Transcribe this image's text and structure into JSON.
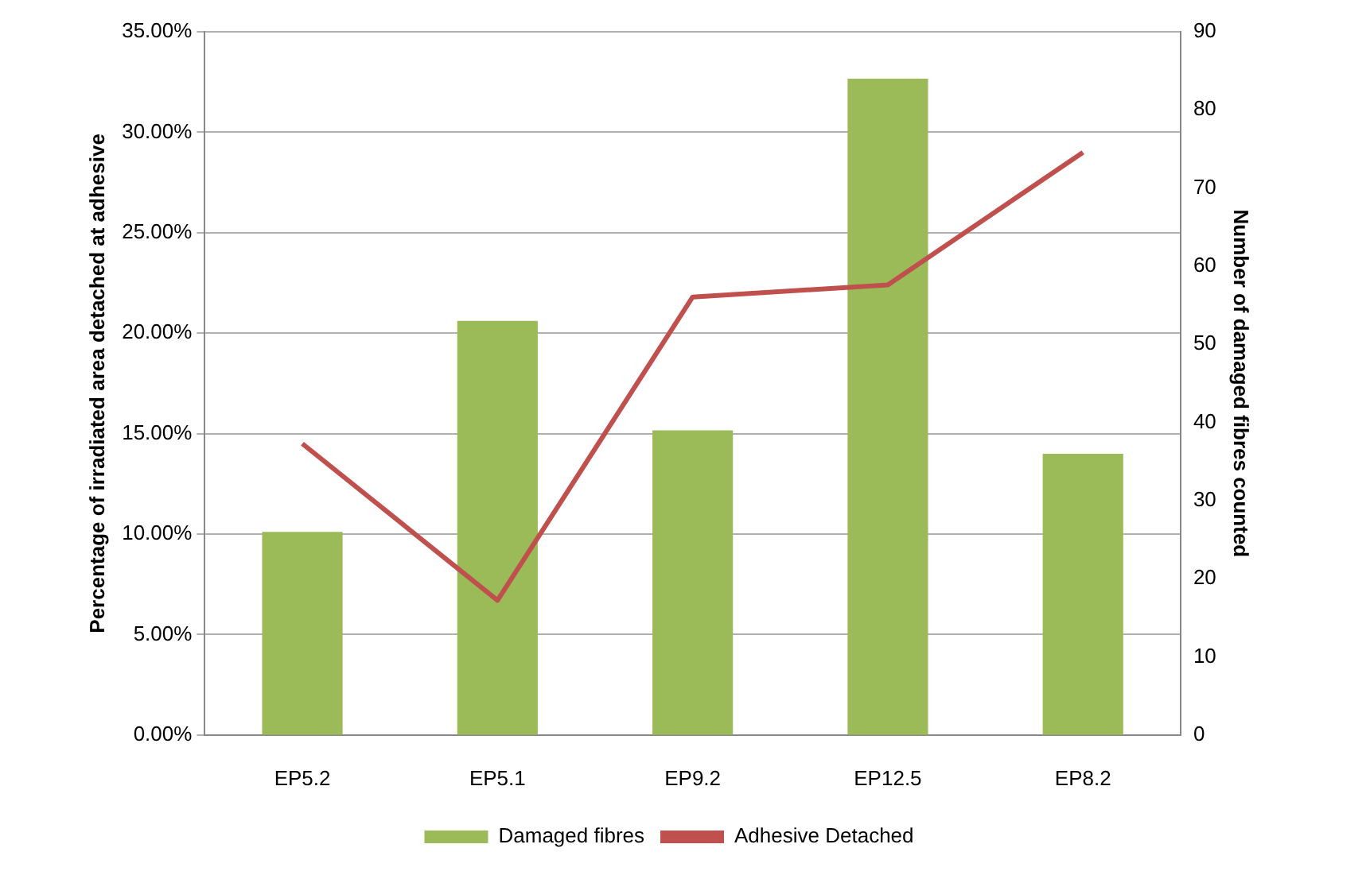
{
  "chart_data": {
    "type": "bar",
    "ylabel": "Percentage of irradiated area detached at adhesive",
    "y2label": "Number of damaged fibres counted",
    "categories": [
      "EP5.2",
      "EP5.1",
      "EP9.2",
      "EP12.5",
      "EP8.2"
    ],
    "series": [
      {
        "name": "Damaged fibres",
        "axis": "y2",
        "color": "#9bbb59",
        "values": [
          26,
          53,
          39,
          84,
          36
        ]
      },
      {
        "name": "Adhesive Detached",
        "type": "line",
        "axis": "y",
        "color": "#c0504d",
        "values": [
          14.5,
          6.7,
          21.8,
          22.4,
          29.0
        ]
      }
    ],
    "ylim": [
      0,
      35
    ],
    "yticks": [
      {
        "value": 0,
        "label": "0.00%"
      },
      {
        "value": 5,
        "label": "5.00%"
      },
      {
        "value": 10,
        "label": "10.00%"
      },
      {
        "value": 15,
        "label": "15.00%"
      },
      {
        "value": 20,
        "label": "20.00%"
      },
      {
        "value": 25,
        "label": "25.00%"
      },
      {
        "value": 30,
        "label": "30.00%"
      },
      {
        "value": 35,
        "label": "35.00%"
      }
    ],
    "y2lim": [
      0,
      90
    ],
    "y2ticks": [
      0,
      10,
      20,
      30,
      40,
      50,
      60,
      70,
      80,
      90
    ],
    "grid": "y",
    "legend": "bottom",
    "marker": "none",
    "line_style": "solid"
  }
}
